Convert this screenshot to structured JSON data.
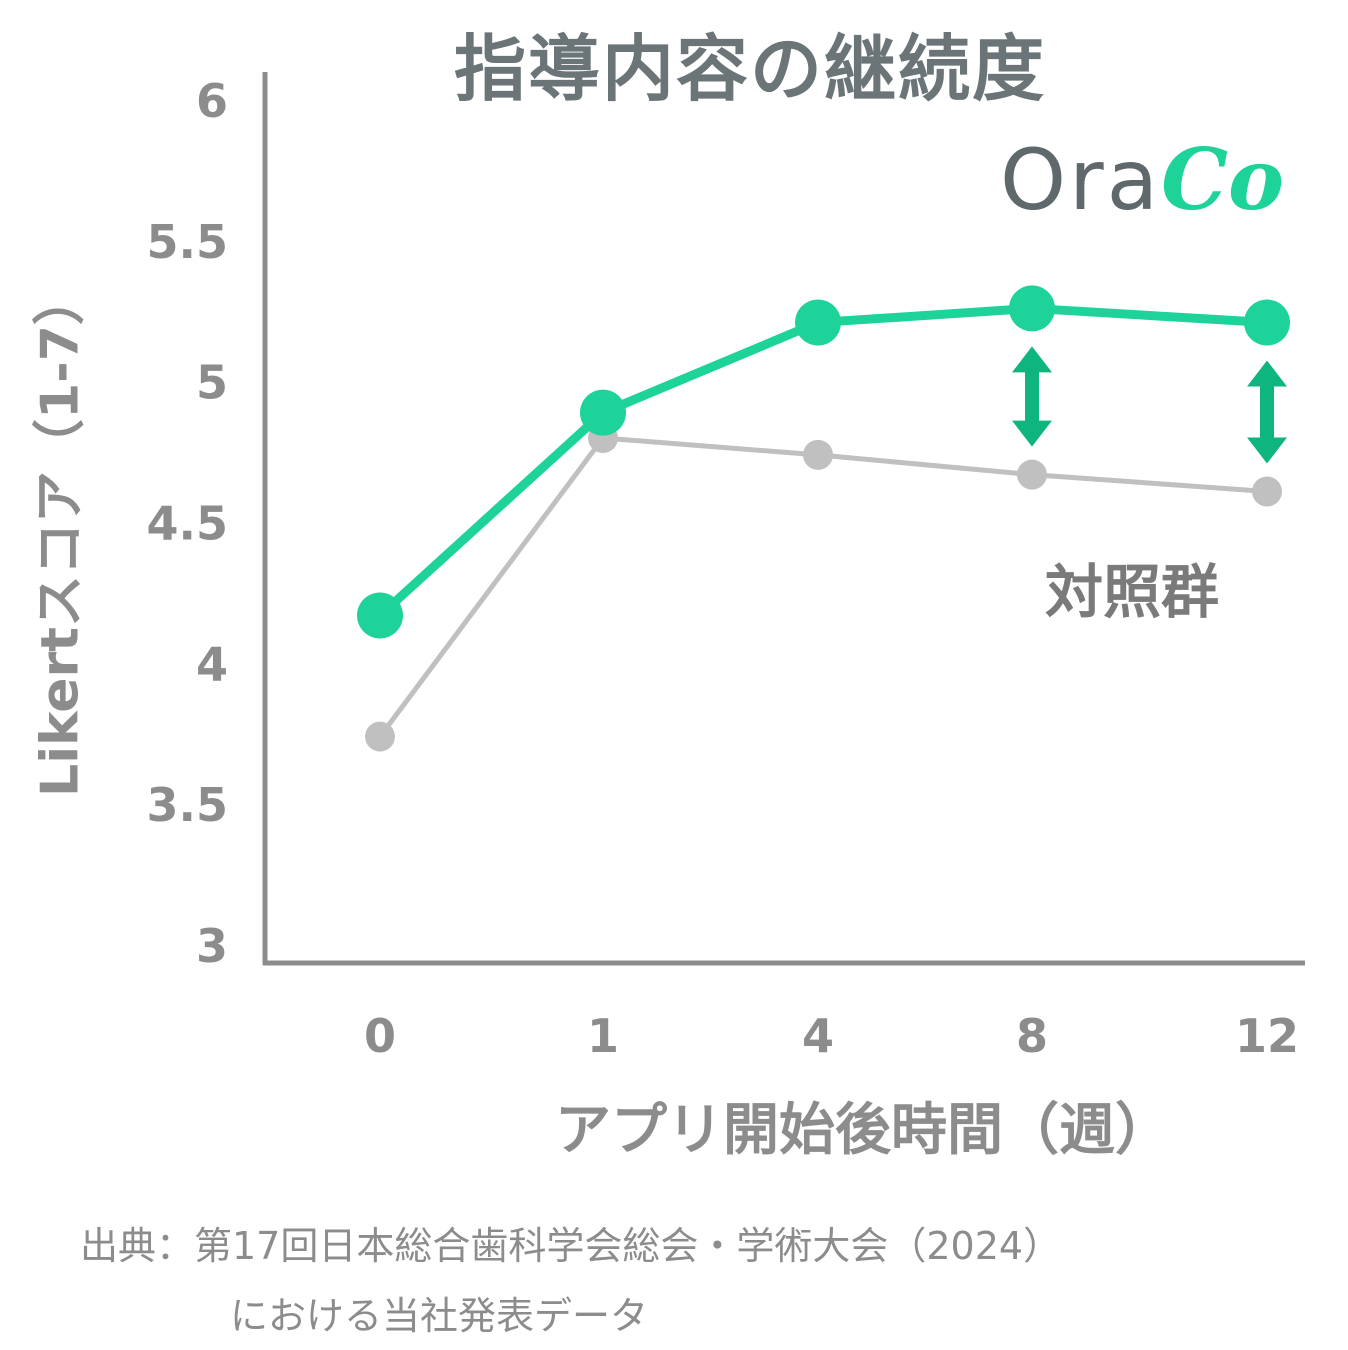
{
  "title": "指導内容の継続度",
  "logo": {
    "part1": "Ora",
    "part2": "Co"
  },
  "control_label": "対照群",
  "source_line1": "出典：第17回日本総合歯科学会総会・学術大会（2024）",
  "source_line2": "における当社発表データ",
  "colors": {
    "oraco": "#1dd39a",
    "control": "#c0c0c0",
    "arrow": "#0fb57e",
    "axis": "#8c8c8c",
    "title": "#6b7578"
  },
  "chart_data": {
    "type": "line",
    "title": "指導内容の継続度",
    "xlabel": "アプリ開始後時間（週）",
    "ylabel": "Likertスコア（1-7）",
    "categories": [
      "0",
      "1",
      "4",
      "8",
      "12"
    ],
    "y_ticks": [
      "3",
      "3.5",
      "4",
      "4.5",
      "5",
      "5.5",
      "6"
    ],
    "ylim": [
      3,
      6
    ],
    "grid": false,
    "series": [
      {
        "name": "OraCo",
        "color": "#1dd39a",
        "values": [
          4.17,
          4.89,
          5.21,
          5.26,
          5.21
        ]
      },
      {
        "name": "対照群",
        "color": "#c0c0c0",
        "values": [
          3.74,
          4.8,
          4.74,
          4.67,
          4.61
        ]
      }
    ],
    "annotations": [
      {
        "type": "double-arrow",
        "category": "8",
        "from": 5.26,
        "to": 4.67
      },
      {
        "type": "double-arrow",
        "category": "12",
        "from": 5.21,
        "to": 4.61
      }
    ]
  }
}
